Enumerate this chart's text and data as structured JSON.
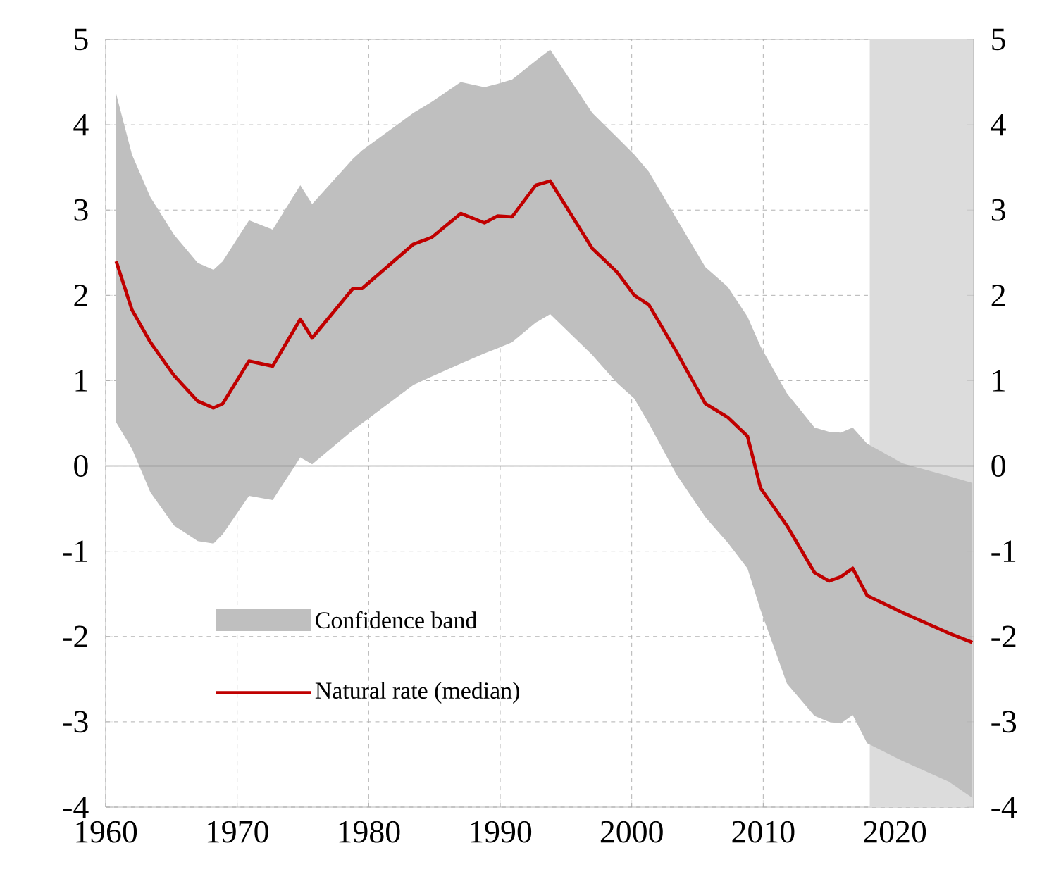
{
  "chart_data": {
    "type": "line",
    "xlim": [
      1960,
      2026
    ],
    "xticks": [
      1960,
      1970,
      1980,
      1990,
      2000,
      2010,
      2020
    ],
    "ylim": [
      -4,
      5
    ],
    "yticks": [
      -4,
      -3,
      -2,
      -1,
      0,
      1,
      2,
      3,
      4,
      5
    ],
    "y2lim": [
      -4,
      5
    ],
    "y2ticks": [
      -4,
      -3,
      -2,
      -1,
      0,
      1,
      2,
      3,
      4,
      5
    ],
    "grid": true,
    "legend": "bottom left",
    "annotations": [
      "Confidence band"
    ],
    "ref_lines": [
      {
        "axis": "y",
        "value": 0,
        "color": "#808080"
      }
    ],
    "bands": [
      {
        "axis": "x",
        "from": 2018.1,
        "to": 2026,
        "color": "#dcdcdc"
      }
    ],
    "series": [
      {
        "name": "Natural rate (median)",
        "color": "#c00000",
        "x": [
          1960.8,
          1962,
          1963.4,
          1965.2,
          1967,
          1968.2,
          1968.9,
          1970.9,
          1972.7,
          1974.8,
          1975.7,
          1978.8,
          1979.5,
          1983.4,
          1984.8,
          1987,
          1988.8,
          1989.8,
          1990.9,
          1992.7,
          1993.8,
          1997,
          1998.9,
          2000.2,
          2001.3,
          2003.4,
          2005.6,
          2007.3,
          2008.8,
          2009.8,
          2011.8,
          2013.9,
          2015,
          2015.9,
          2016.8,
          2017.9,
          2020.6,
          2024.1,
          2025.9
        ],
        "values": [
          2.4,
          1.83,
          1.45,
          1.06,
          0.76,
          0.68,
          0.73,
          1.23,
          1.17,
          1.72,
          1.5,
          2.08,
          2.08,
          2.6,
          2.68,
          2.96,
          2.85,
          2.93,
          2.92,
          3.29,
          3.34,
          2.55,
          2.27,
          2,
          1.89,
          1.34,
          0.73,
          0.57,
          0.35,
          -0.26,
          -0.7,
          -1.25,
          -1.35,
          -1.3,
          -1.2,
          -1.52,
          -1.72,
          -1.96,
          -2.07
        ],
        "upper": [
          4.36,
          3.65,
          3.15,
          2.71,
          2.38,
          2.3,
          2.4,
          2.88,
          2.77,
          3.29,
          3.07,
          3.6,
          3.7,
          4.14,
          4.27,
          4.5,
          4.44,
          4.48,
          4.53,
          4.75,
          4.88,
          4.14,
          3.85,
          3.65,
          3.45,
          2.9,
          2.33,
          2.1,
          1.75,
          1.4,
          0.85,
          0.45,
          0.4,
          0.39,
          0.45,
          0.26,
          0.03,
          -0.12,
          -0.2
        ],
        "lower": [
          0.51,
          0.2,
          -0.31,
          -0.7,
          -0.88,
          -0.91,
          -0.8,
          -0.35,
          -0.4,
          0.1,
          0.02,
          0.42,
          0.5,
          0.95,
          1.05,
          1.2,
          1.32,
          1.38,
          1.45,
          1.68,
          1.78,
          1.3,
          0.97,
          0.79,
          0.5,
          -0.1,
          -0.6,
          -0.9,
          -1.2,
          -1.69,
          -2.55,
          -2.93,
          -3.0,
          -3.02,
          -2.92,
          -3.25,
          -3.46,
          -3.7,
          -3.89
        ]
      }
    ]
  }
}
